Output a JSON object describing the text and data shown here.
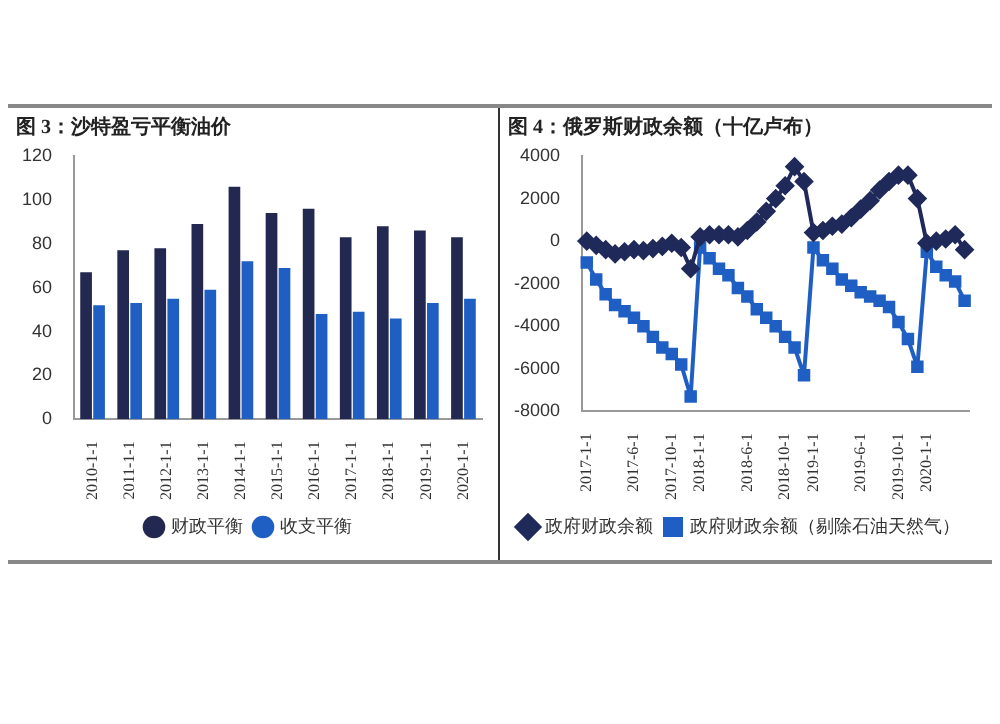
{
  "chart_data": [
    {
      "type": "bar",
      "title": "图 3：沙特盈亏平衡油价",
      "categories": [
        "2010-1-1",
        "2011-1-1",
        "2012-1-1",
        "2013-1-1",
        "2014-1-1",
        "2015-1-1",
        "2016-1-1",
        "2017-1-1",
        "2018-1-1",
        "2019-1-1",
        "2020-1-1"
      ],
      "series": [
        {
          "name": "财政平衡",
          "color": "#232850",
          "values": [
            67,
            77,
            78,
            89,
            106,
            94,
            96,
            83,
            88,
            86,
            83
          ]
        },
        {
          "name": "收支平衡",
          "color": "#1f5fc4",
          "values": [
            52,
            53,
            55,
            59,
            72,
            69,
            48,
            49,
            46,
            53,
            55
          ]
        }
      ],
      "ylim": [
        0,
        120
      ],
      "yticks": [
        0,
        20,
        40,
        60,
        80,
        100,
        120
      ],
      "grid": false,
      "legend": "bottom"
    },
    {
      "type": "line",
      "title": "图 4：俄罗斯财政余额（十亿卢布）",
      "categories": [
        "2017-1-1",
        null,
        null,
        null,
        null,
        "2017-6-1",
        null,
        null,
        null,
        "2017-10-1",
        null,
        null,
        "2018-1-1",
        null,
        null,
        null,
        null,
        "2018-6-1",
        null,
        null,
        null,
        "2018-10-1",
        null,
        null,
        "2019-1-1",
        null,
        null,
        null,
        null,
        "2019-6-1",
        null,
        null,
        null,
        "2019-10-1",
        null,
        null,
        "2020-1-1",
        null,
        null,
        null,
        null
      ],
      "series": [
        {
          "name": "政府财政余额",
          "color": "#1f2a5a",
          "marker": "diamond",
          "values": [
            0,
            -200,
            -400,
            -600,
            -500,
            -400,
            -450,
            -350,
            -250,
            -100,
            -300,
            -1300,
            200,
            300,
            300,
            300,
            200,
            500,
            900,
            1400,
            2000,
            2600,
            3500,
            2800,
            400,
            500,
            700,
            800,
            1100,
            1500,
            1900,
            2400,
            2800,
            3100,
            3100,
            2000,
            -100,
            0,
            100,
            300,
            -400
          ]
        },
        {
          "name": "政府财政余额（剔除石油天然气）",
          "color": "#1f5fc4",
          "marker": "square",
          "values": [
            -1000,
            -1800,
            -2500,
            -3000,
            -3300,
            -3600,
            -4000,
            -4500,
            -5000,
            -5300,
            -5800,
            -7300,
            -300,
            -800,
            -1300,
            -1600,
            -2200,
            -2600,
            -3200,
            -3600,
            -4000,
            -4500,
            -5000,
            -6300,
            -300,
            -900,
            -1300,
            -1800,
            -2100,
            -2400,
            -2600,
            -2800,
            -3100,
            -3800,
            -4600,
            -5900,
            -500,
            -1200,
            -1600,
            -1900,
            -2800
          ]
        }
      ],
      "ylim": [
        -8000,
        4000
      ],
      "yticks": [
        -8000,
        -6000,
        -4000,
        -2000,
        0,
        2000,
        4000
      ],
      "grid": false,
      "legend": "bottom"
    }
  ]
}
